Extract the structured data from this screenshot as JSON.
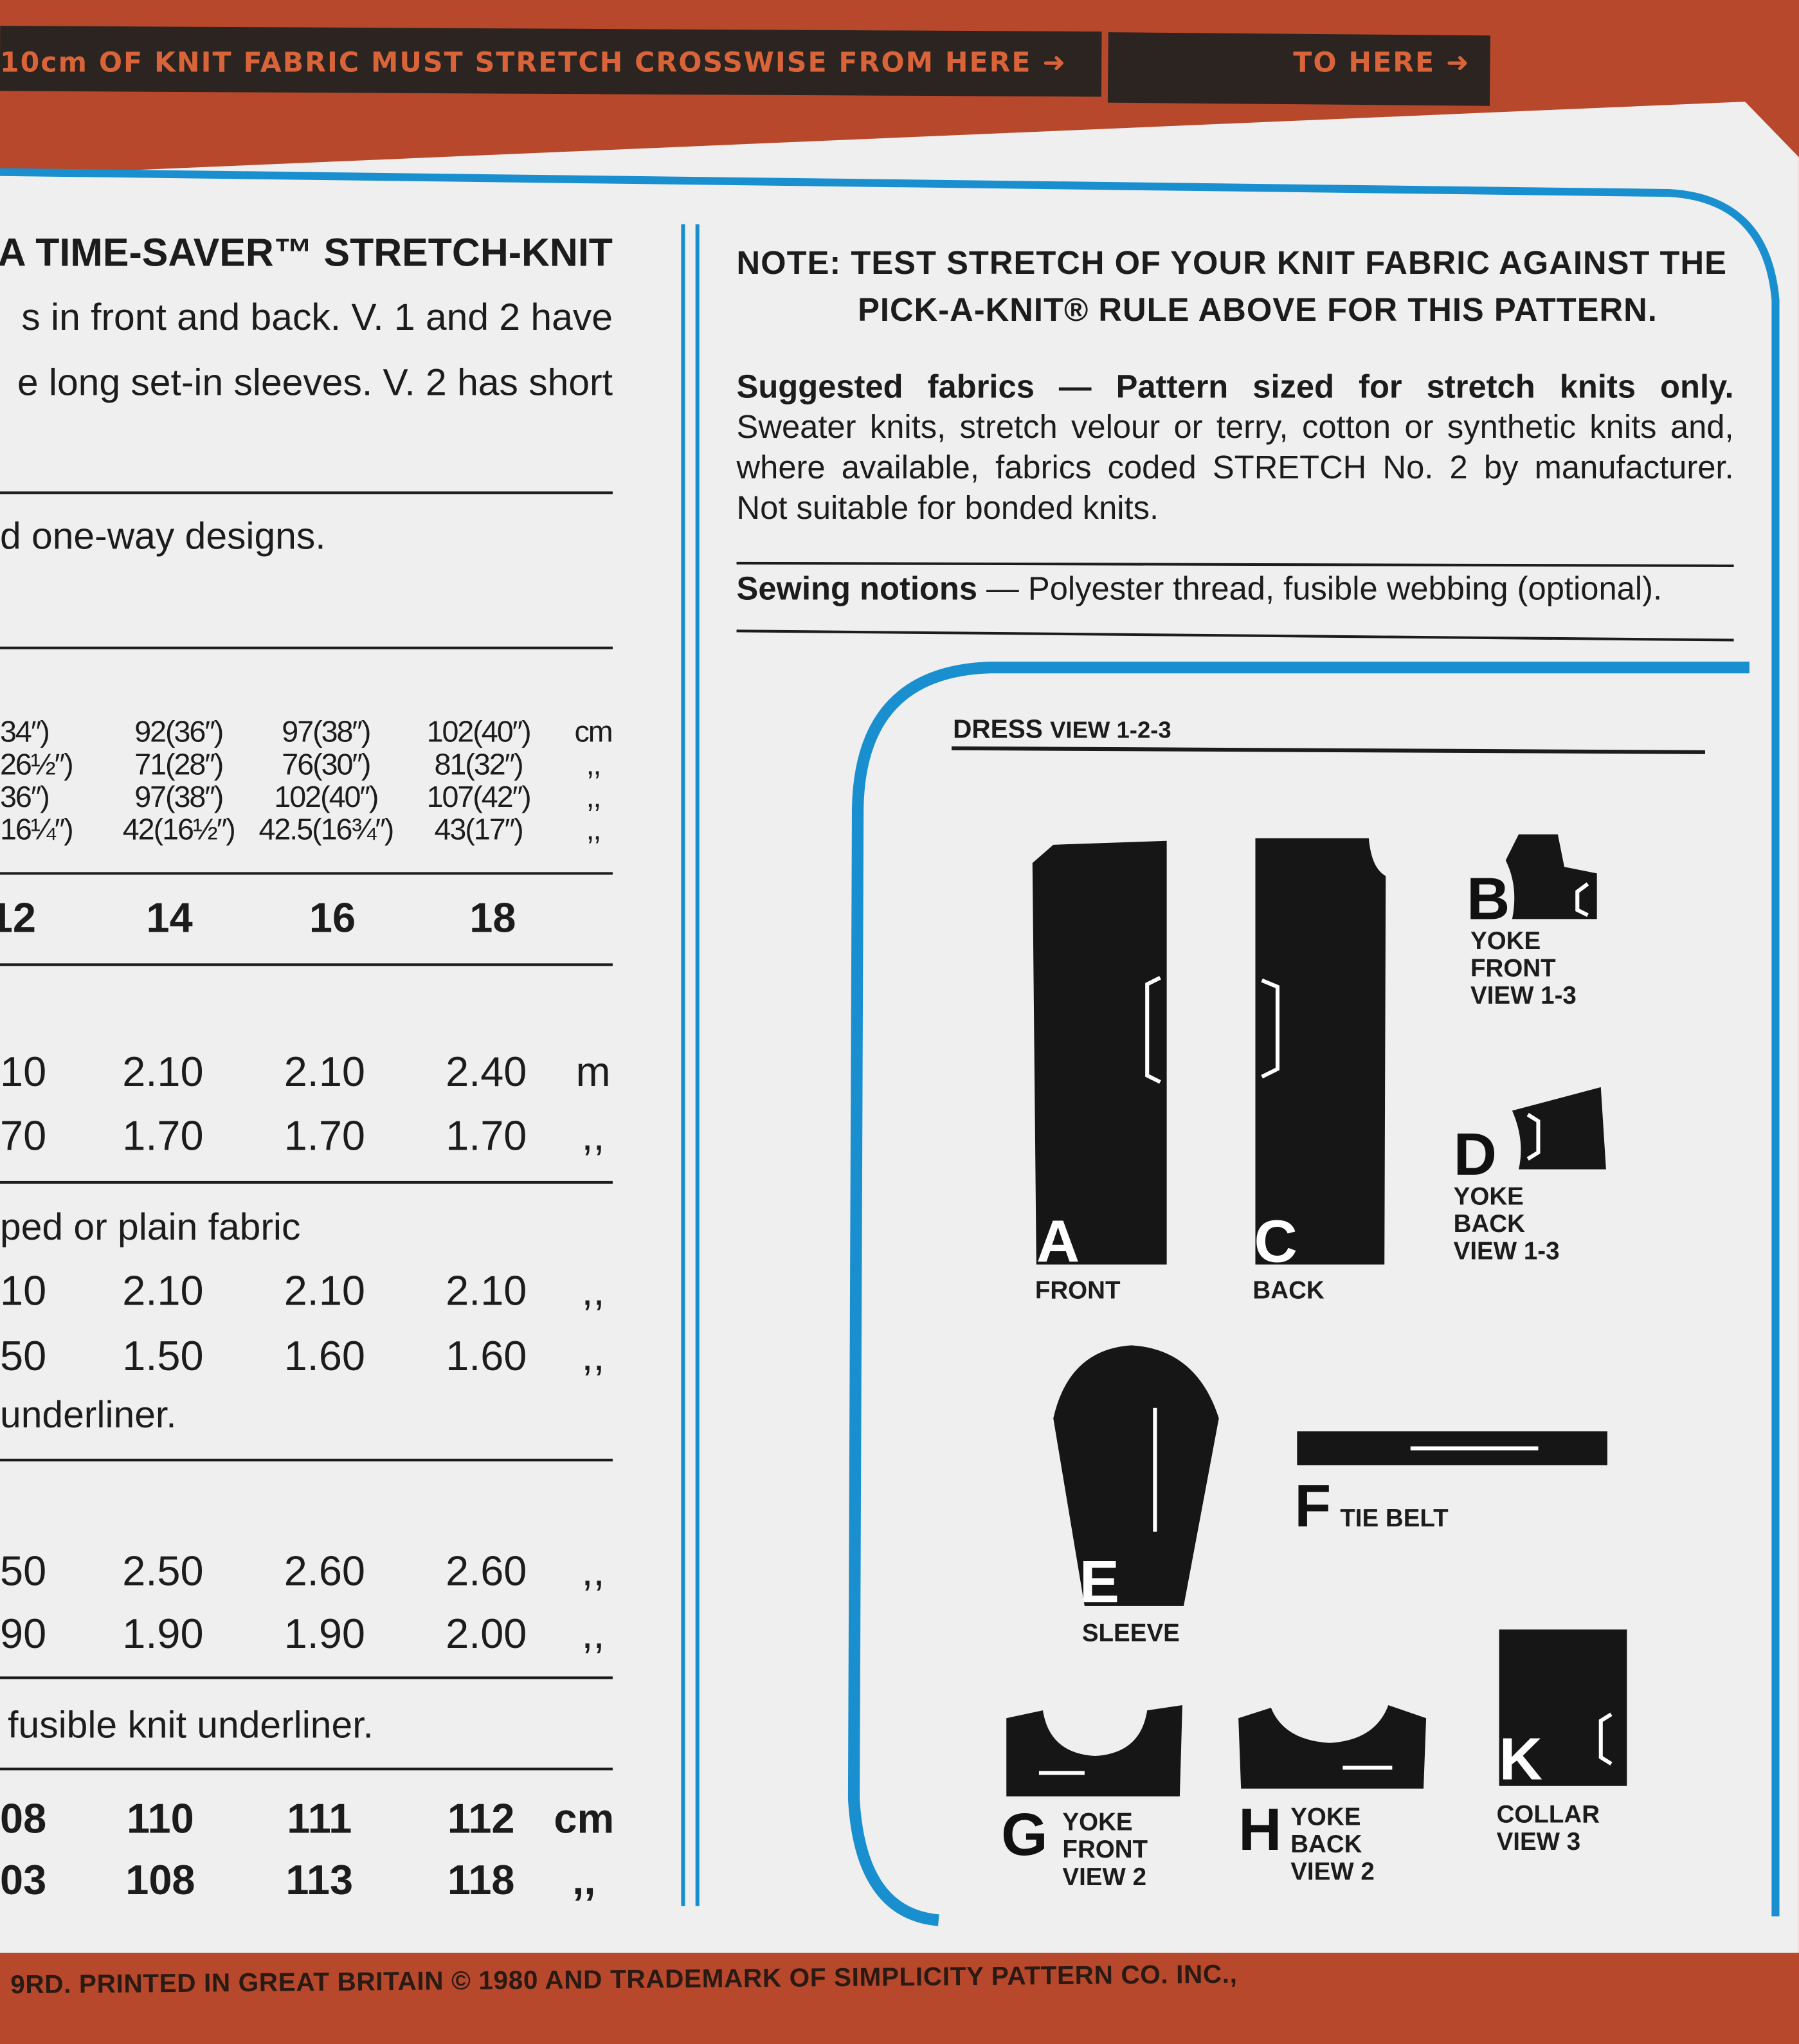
{
  "top_banner": {
    "from_text": "10cm OF KNIT FABRIC MUST STRETCH CROSSWISE FROM HERE",
    "to_text": "TO HERE"
  },
  "left": {
    "title": "A TIME-SAVER™ STRETCH-KNIT",
    "desc_lines": [
      "s in front and back. V. 1 and 2 have",
      "e long set-in sleeves. V. 2 has short"
    ],
    "designs_note": "d one-way designs.",
    "measurements": [
      [
        "34″)",
        "92(36″)",
        "97(38″)",
        "102(40″)",
        "cm"
      ],
      [
        "26½″)",
        "71(28″)",
        "76(30″)",
        "81(32″)",
        ",,"
      ],
      [
        "36″)",
        "97(38″)",
        "102(40″)",
        "107(42″)",
        ",,"
      ],
      [
        "16¼″)",
        "42(16½″)",
        "42.5(16¾″)",
        "43(17″)",
        ",,"
      ]
    ],
    "sizes": [
      "12",
      "14",
      "16",
      "18"
    ],
    "yardage_1": [
      [
        "10",
        "2.10",
        "2.10",
        "2.40",
        "m"
      ],
      [
        "70",
        "1.70",
        "1.70",
        "1.70",
        ",,"
      ]
    ],
    "note_2": "ped or plain fabric",
    "yardage_2": [
      [
        "10",
        "2.10",
        "2.10",
        "2.10",
        ",,"
      ],
      [
        "50",
        "1.50",
        "1.60",
        "1.60",
        ",,"
      ]
    ],
    "note_3": "underliner.",
    "yardage_3": [
      [
        "50",
        "2.50",
        "2.60",
        "2.60",
        ",,"
      ],
      [
        "90",
        "1.90",
        "1.90",
        "2.00",
        ",,"
      ]
    ],
    "note_4": "fusible knit underliner.",
    "finished": [
      [
        "08",
        "110",
        "111",
        "112",
        "cm"
      ],
      [
        "03",
        "108",
        "113",
        "118",
        ",,"
      ]
    ]
  },
  "right": {
    "note_line1": "NOTE: TEST STRETCH OF YOUR KNIT FABRIC AGAINST THE",
    "note_line2": "PICK-A-KNIT® RULE ABOVE FOR THIS PATTERN.",
    "fabrics_label": "Suggested fabrics — Pattern sized for stretch knits only.",
    "fabrics_text": " Sweater knits, stretch velour or terry, cotton or synthetic knits and, where available, fabrics coded STRETCH No. 2 by manufacturer. Not suitable for bonded knits.",
    "notions_label": "Sewing notions",
    "notions_text": " — Polyester thread, fusible webbing (optional).",
    "diagram_title": "DRESS",
    "diagram_subtitle": "VIEW 1-2-3",
    "pieces": {
      "A": {
        "letter": "A",
        "label": "FRONT"
      },
      "B": {
        "letter": "B",
        "label": "YOKE\nFRONT\nVIEW 1-3"
      },
      "C": {
        "letter": "C",
        "label": "BACK"
      },
      "D": {
        "letter": "D",
        "label": "YOKE\nBACK\nVIEW 1-3"
      },
      "E": {
        "letter": "E",
        "label": "SLEEVE"
      },
      "F": {
        "letter": "F",
        "label": "TIE BELT"
      },
      "G": {
        "letter": "G",
        "label": "YOKE\nFRONT\nVIEW 2"
      },
      "H": {
        "letter": "H",
        "label": "YOKE\nBACK\nVIEW 2"
      },
      "K": {
        "letter": "K",
        "label": "COLLAR\nVIEW 3"
      }
    }
  },
  "footer": {
    "text": "9RD.   PRINTED IN GREAT BRITAIN © 1980 AND TRADEMARK OF SIMPLICITY PATTERN CO. INC.,"
  },
  "colors": {
    "band": "#b8482b",
    "strip": "#2b2420",
    "blue": "#1a8fcf",
    "paper": "#eeefee"
  }
}
